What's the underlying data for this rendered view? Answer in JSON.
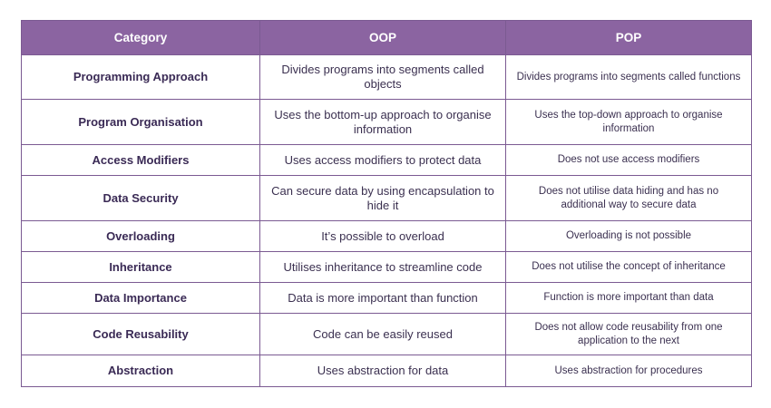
{
  "table": {
    "header": [
      "Category",
      "OOP",
      "POP"
    ],
    "rows": [
      [
        "Programming Approach",
        "Divides programs into segments called objects",
        "Divides programs into segments called functions"
      ],
      [
        "Program Organisation",
        "Uses the bottom-up approach to organise information",
        "Uses the top-down approach to organise information"
      ],
      [
        "Access Modifiers",
        "Uses access modifiers to protect data",
        "Does not use access modifiers"
      ],
      [
        "Data Security",
        "Can secure data by using encapsulation to hide it",
        "Does not utilise data hiding and has no additional way to secure data"
      ],
      [
        "Overloading",
        "It’s possible to overload",
        "Overloading is not possible"
      ],
      [
        "Inheritance",
        "Utilises inheritance to streamline code",
        "Does not utilise the concept of inheritance"
      ],
      [
        "Data Importance",
        "Data is more important than function",
        "Function is more important than data"
      ],
      [
        "Code Reusability",
        "Code can be easily reused",
        "Does not allow code reusability from one application to the next"
      ],
      [
        "Abstraction",
        "Uses abstraction for data",
        "Uses abstraction for procedures"
      ]
    ]
  }
}
